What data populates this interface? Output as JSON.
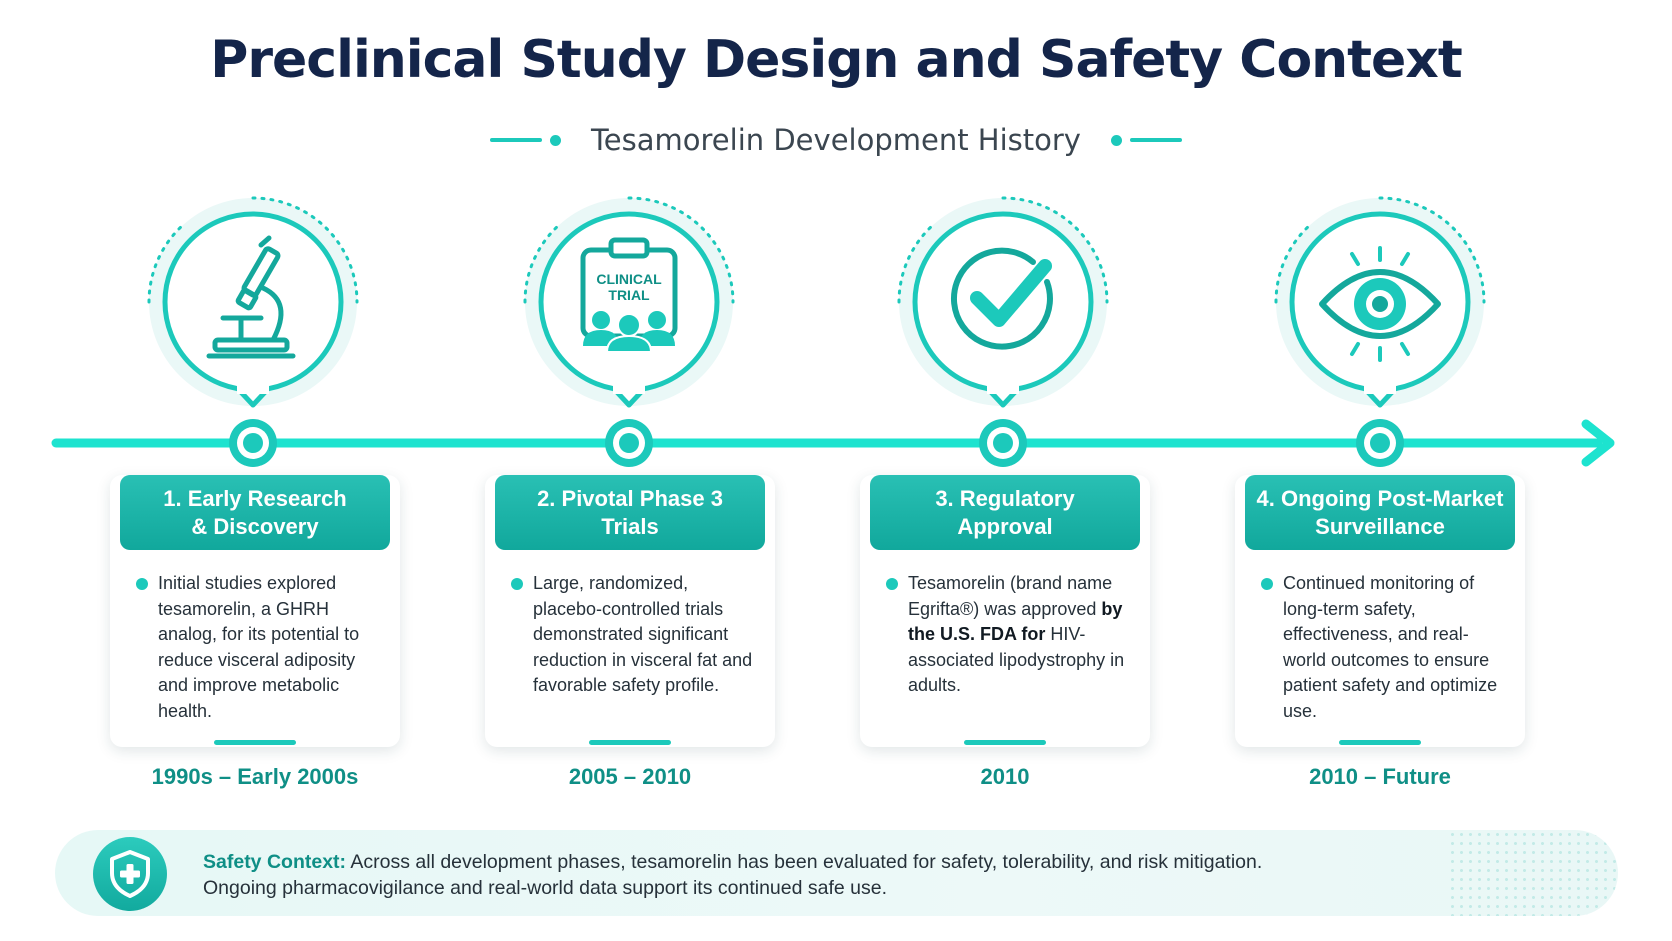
{
  "title": "Preclinical Study Design and Safety Context",
  "subtitle": "Tesamorelin Development History",
  "colors": {
    "accent": "#1cc9bb",
    "accent_dark": "#0f8f86",
    "title": "#14254a"
  },
  "milestones": [
    {
      "icon": "microscope-icon",
      "title_line1": "1. Early Research",
      "title_line2": "& Discovery",
      "body": "Initial studies explored tesamorelin, a GHRH analog, for its potential to reduce visceral adiposity and improve metabolic health.",
      "date": "1990s – Early 2000s"
    },
    {
      "icon": "clinical-trial-icon",
      "icon_text_line1": "CLINICAL",
      "icon_text_line2": "TRIAL",
      "title_line1": "2. Pivotal Phase 3",
      "title_line2": "Trials",
      "body": "Large, randomized, placebo-controlled trials demonstrated significant reduction in visceral fat and favorable safety profile.",
      "date": "2005 – 2010"
    },
    {
      "icon": "checkmark-icon",
      "title_line1": "3. Regulatory",
      "title_line2": "Approval",
      "body_pre": "Tesamorelin (brand name Egrifta®) was approved ",
      "body_bold": "by the U.S. FDA for",
      "body_post": " HIV-associated lipodystrophy in adults.",
      "date": "2010"
    },
    {
      "icon": "eye-icon",
      "title_line1": "4. Ongoing Post-Market",
      "title_line2": "Surveillance",
      "body": "Continued monitoring of long-term safety, effectiveness, and real-world outcomes to ensure patient safety and optimize use.",
      "date": "2010 – Future"
    }
  ],
  "safety": {
    "icon": "shield-plus-icon",
    "lead": "Safety Context:",
    "line1": " Across all development phases, tesamorelin has been evaluated for safety, tolerability, and risk mitigation.",
    "line2": "Ongoing pharmacovigilance and real-world data support its continued safe use."
  }
}
